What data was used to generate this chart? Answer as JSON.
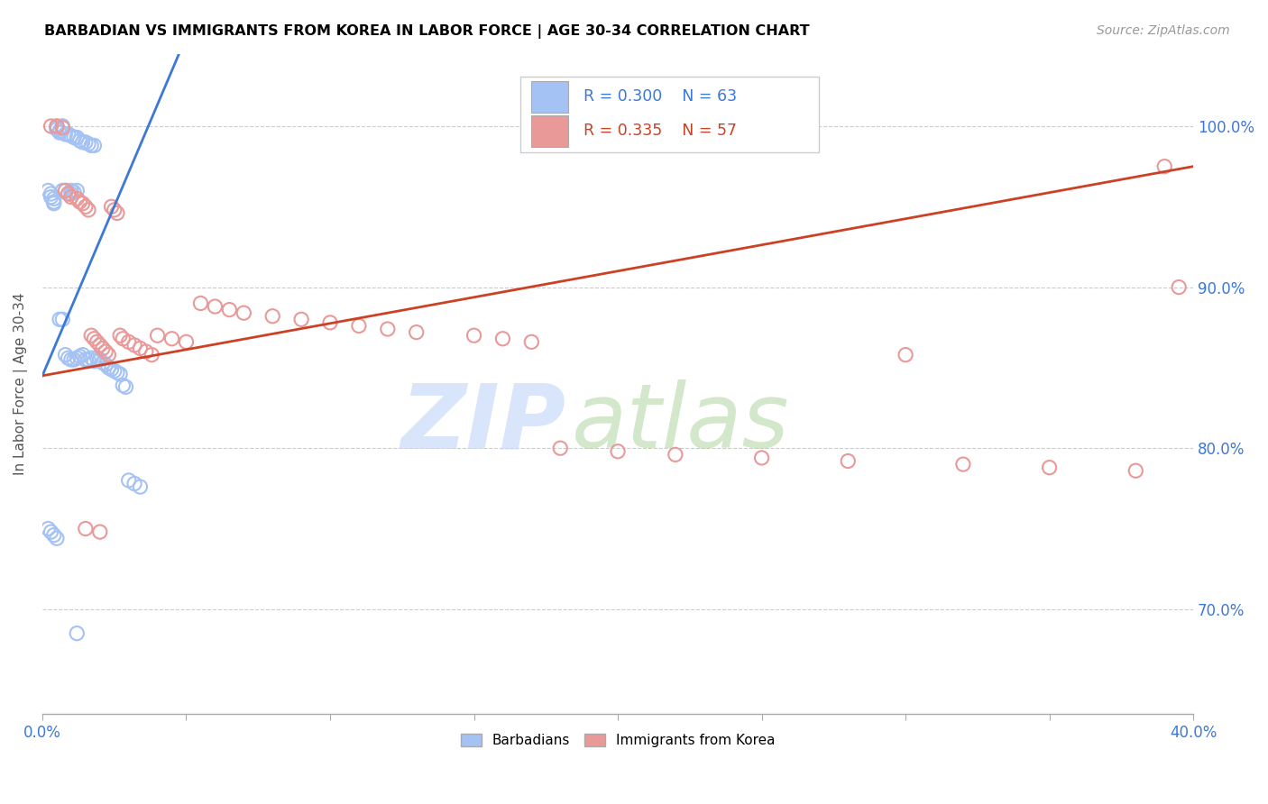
{
  "title": "BARBADIAN VS IMMIGRANTS FROM KOREA IN LABOR FORCE | AGE 30-34 CORRELATION CHART",
  "source": "Source: ZipAtlas.com",
  "ylabel": "In Labor Force | Age 30-34",
  "xlim": [
    0.0,
    0.4
  ],
  "ylim": [
    0.635,
    1.045
  ],
  "yticks": [
    0.7,
    0.8,
    0.9,
    1.0
  ],
  "ytick_labels": [
    "70.0%",
    "80.0%",
    "90.0%",
    "100.0%"
  ],
  "xticks": [
    0.0,
    0.05,
    0.1,
    0.15,
    0.2,
    0.25,
    0.3,
    0.35,
    0.4
  ],
  "xtick_labels": [
    "0.0%",
    "",
    "",
    "",
    "",
    "",
    "",
    "",
    "40.0%"
  ],
  "blue_R": 0.3,
  "blue_N": 63,
  "pink_R": 0.335,
  "pink_N": 57,
  "blue_color": "#a4c2f4",
  "pink_color": "#ea9999",
  "blue_line_color": "#3c78d8",
  "pink_line_color": "#cc4125",
  "legend_label_blue": "Barbadians",
  "legend_label_pink": "Immigrants from Korea",
  "blue_line_x0": 0.0,
  "blue_line_y0": 0.845,
  "blue_line_x1": 0.038,
  "blue_line_y1": 1.005,
  "pink_line_x0": 0.0,
  "pink_line_y0": 0.845,
  "pink_line_x1": 0.4,
  "pink_line_y1": 0.975,
  "blue_x": [
    0.002,
    0.003,
    0.003,
    0.004,
    0.004,
    0.004,
    0.005,
    0.005,
    0.005,
    0.006,
    0.006,
    0.006,
    0.007,
    0.007,
    0.007,
    0.007,
    0.008,
    0.008,
    0.008,
    0.009,
    0.009,
    0.009,
    0.01,
    0.01,
    0.01,
    0.01,
    0.011,
    0.011,
    0.011,
    0.012,
    0.012,
    0.012,
    0.013,
    0.013,
    0.014,
    0.014,
    0.015,
    0.015,
    0.016,
    0.016,
    0.017,
    0.017,
    0.018,
    0.018,
    0.019,
    0.02,
    0.021,
    0.022,
    0.023,
    0.024,
    0.025,
    0.026,
    0.027,
    0.028,
    0.029,
    0.03,
    0.032,
    0.034,
    0.002,
    0.003,
    0.004,
    0.005,
    0.012
  ],
  "blue_y": [
    0.96,
    0.958,
    0.956,
    0.955,
    0.953,
    0.952,
    1.0,
    0.999,
    0.998,
    0.997,
    0.996,
    0.88,
    1.0,
    1.0,
    0.96,
    0.88,
    0.995,
    0.96,
    0.858,
    0.995,
    0.958,
    0.856,
    0.994,
    0.96,
    0.958,
    0.855,
    0.993,
    0.959,
    0.855,
    0.993,
    0.96,
    0.856,
    0.991,
    0.857,
    0.99,
    0.858,
    0.99,
    0.855,
    0.989,
    0.855,
    0.988,
    0.856,
    0.988,
    0.854,
    0.856,
    0.855,
    0.853,
    0.852,
    0.85,
    0.849,
    0.848,
    0.847,
    0.846,
    0.839,
    0.838,
    0.78,
    0.778,
    0.776,
    0.75,
    0.748,
    0.746,
    0.744,
    0.685
  ],
  "pink_x": [
    0.003,
    0.005,
    0.007,
    0.008,
    0.009,
    0.01,
    0.012,
    0.013,
    0.014,
    0.015,
    0.016,
    0.017,
    0.018,
    0.019,
    0.02,
    0.021,
    0.022,
    0.023,
    0.024,
    0.025,
    0.026,
    0.027,
    0.028,
    0.03,
    0.032,
    0.034,
    0.036,
    0.038,
    0.04,
    0.045,
    0.05,
    0.055,
    0.06,
    0.065,
    0.07,
    0.08,
    0.09,
    0.1,
    0.11,
    0.12,
    0.13,
    0.15,
    0.16,
    0.17,
    0.18,
    0.2,
    0.22,
    0.25,
    0.28,
    0.3,
    0.32,
    0.35,
    0.38,
    0.39,
    0.395,
    0.015,
    0.02
  ],
  "pink_y": [
    1.0,
    1.0,
    0.999,
    0.96,
    0.958,
    0.956,
    0.955,
    0.953,
    0.952,
    0.95,
    0.948,
    0.87,
    0.868,
    0.866,
    0.864,
    0.862,
    0.86,
    0.858,
    0.95,
    0.948,
    0.946,
    0.87,
    0.868,
    0.866,
    0.864,
    0.862,
    0.86,
    0.858,
    0.87,
    0.868,
    0.866,
    0.89,
    0.888,
    0.886,
    0.884,
    0.882,
    0.88,
    0.878,
    0.876,
    0.874,
    0.872,
    0.87,
    0.868,
    0.866,
    0.8,
    0.798,
    0.796,
    0.794,
    0.792,
    0.858,
    0.79,
    0.788,
    0.786,
    0.975,
    0.9,
    0.75,
    0.748
  ]
}
